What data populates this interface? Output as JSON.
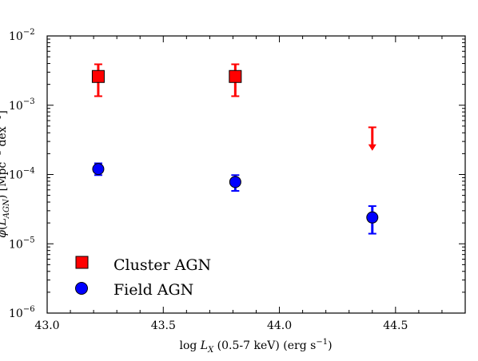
{
  "chart_data": {
    "type": "scatter",
    "xlabel": "log L_X (0.5-7 keV) (erg s^-1)",
    "ylabel": "φ(L_AGN) [Mpc^-3 dex^-1]",
    "xlim": [
      43.0,
      44.8
    ],
    "ylim_log10": [
      -6,
      -2
    ],
    "yscale": "log",
    "grid": false,
    "legend_position": "lower-left",
    "x_ticks": [
      {
        "value": 43.0,
        "label": "43.0"
      },
      {
        "value": 43.5,
        "label": "43.5"
      },
      {
        "value": 44.0,
        "label": "44.0"
      },
      {
        "value": 44.5,
        "label": "44.5"
      }
    ],
    "y_ticks": [
      {
        "exp": -6,
        "base": "10",
        "power": "−6"
      },
      {
        "exp": -5,
        "base": "10",
        "power": "−5"
      },
      {
        "exp": -4,
        "base": "10",
        "power": "−4"
      },
      {
        "exp": -3,
        "base": "10",
        "power": "−3"
      },
      {
        "exp": -2,
        "base": "10",
        "power": "−2"
      }
    ],
    "series": [
      {
        "name": "Cluster AGN",
        "marker": "square",
        "color": "#ff0000",
        "points": [
          {
            "x": 43.22,
            "y": 0.0026,
            "y_low": 0.00135,
            "y_high": 0.0039
          },
          {
            "x": 43.81,
            "y": 0.0026,
            "y_low": 0.00135,
            "y_high": 0.0039
          }
        ],
        "upper_limits": [
          {
            "x": 44.4,
            "y": 0.00048,
            "arrow_to": 0.00022
          }
        ]
      },
      {
        "name": "Field AGN",
        "marker": "circle",
        "color": "#0000ff",
        "points": [
          {
            "x": 43.22,
            "y": 0.00012,
            "y_low": 9.8e-05,
            "y_high": 0.000145
          },
          {
            "x": 43.81,
            "y": 7.8e-05,
            "y_low": 5.8e-05,
            "y_high": 9.8e-05
          },
          {
            "x": 44.4,
            "y": 2.4e-05,
            "y_low": 1.4e-05,
            "y_high": 3.5e-05
          }
        ]
      }
    ]
  }
}
